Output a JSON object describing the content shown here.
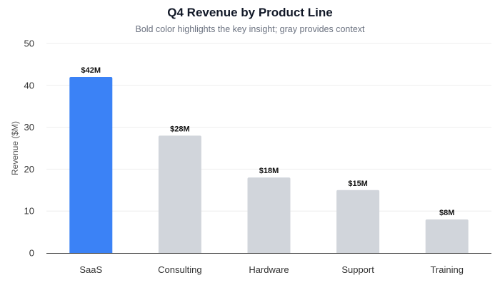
{
  "chart_data": {
    "type": "bar",
    "title": "Q4 Revenue by Product Line",
    "subtitle": "Bold color highlights the key insight; gray provides context",
    "xlabel": "",
    "ylabel": "Revenue ($M)",
    "ylim": [
      0,
      50
    ],
    "yticks": [
      0,
      10,
      20,
      30,
      40,
      50
    ],
    "grid": true,
    "categories": [
      "SaaS",
      "Consulting",
      "Hardware",
      "Support",
      "Training"
    ],
    "values": [
      42,
      28,
      18,
      15,
      8
    ],
    "data_labels": [
      "$42M",
      "$28M",
      "$18M",
      "$15M",
      "$8M"
    ],
    "colors": [
      "#3b82f6",
      "#d1d5db",
      "#d1d5db",
      "#d1d5db",
      "#d1d5db"
    ],
    "highlight_color": "#3b82f6",
    "context_color": "#d1d5db"
  }
}
